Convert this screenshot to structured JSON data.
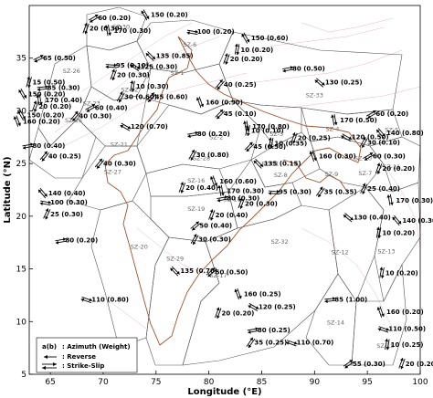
{
  "chart_data": {
    "type": "scatter",
    "title": "",
    "xlabel": "Longitude (°E)",
    "ylabel": "Latitude (°N)",
    "xlim": [
      63,
      100
    ],
    "ylim": [
      5,
      40
    ],
    "xticks": [
      "65",
      "70",
      "75",
      "80",
      "85",
      "90",
      "95",
      "100"
    ],
    "yticks": [
      "5",
      "10",
      "15",
      "20",
      "25",
      "30",
      "35"
    ],
    "grid": false,
    "legend": {
      "placement": "bottom-left",
      "entries": [
        {
          "symbol": "a(b)",
          "label": ": Azimuth (Weight)"
        },
        {
          "symbol": "reverse-arrow",
          "label": ": Reverse"
        },
        {
          "symbol": "strike-slip-arrows",
          "label": ": Strike-Slip"
        }
      ]
    },
    "zone_labels": [
      {
        "name": "SZ-30",
        "x": 71.7,
        "y": 37.8
      },
      {
        "name": "SZ-6",
        "x": 78.2,
        "y": 36.1
      },
      {
        "name": "SZ-26",
        "x": 67.0,
        "y": 33.6
      },
      {
        "name": "SZ-1",
        "x": 77.0,
        "y": 33.4
      },
      {
        "name": "SZ-22",
        "x": 72.5,
        "y": 31.8
      },
      {
        "name": "SZ-23",
        "x": 68.9,
        "y": 30.5
      },
      {
        "name": "SZ-33",
        "x": 90.0,
        "y": 31.3
      },
      {
        "name": "SZ-25",
        "x": 67.2,
        "y": 28.9
      },
      {
        "name": "SZ-4",
        "x": 91.7,
        "y": 28.1
      },
      {
        "name": "SZ-3",
        "x": 86.4,
        "y": 27.6
      },
      {
        "name": "SZ-2",
        "x": 80.7,
        "y": 27.3
      },
      {
        "name": "SZ-5",
        "x": 97.3,
        "y": 28.0
      },
      {
        "name": "SZ-21",
        "x": 71.5,
        "y": 26.6
      },
      {
        "name": "SZ-10",
        "x": 94.6,
        "y": 25.3
      },
      {
        "name": "SZ-28",
        "x": 79.3,
        "y": 25.3
      },
      {
        "name": "SZ-31",
        "x": 85.8,
        "y": 24.8
      },
      {
        "name": "SZ-11",
        "x": 97.3,
        "y": 24.5
      },
      {
        "name": "SZ-8",
        "x": 86.8,
        "y": 23.7
      },
      {
        "name": "SZ-9",
        "x": 91.6,
        "y": 23.8
      },
      {
        "name": "SZ-7",
        "x": 94.8,
        "y": 23.9
      },
      {
        "name": "SZ-27",
        "x": 70.9,
        "y": 24.0
      },
      {
        "name": "SZ-16",
        "x": 78.8,
        "y": 23.2
      },
      {
        "name": "SZ-18",
        "x": 82.2,
        "y": 21.4
      },
      {
        "name": "SZ-19",
        "x": 78.8,
        "y": 20.5
      },
      {
        "name": "SZ-20",
        "x": 73.4,
        "y": 16.9
      },
      {
        "name": "SZ-32",
        "x": 86.7,
        "y": 17.4
      },
      {
        "name": "SZ-29",
        "x": 76.8,
        "y": 15.8
      },
      {
        "name": "SZ-17",
        "x": 80.9,
        "y": 14.2
      },
      {
        "name": "SZ-12",
        "x": 92.4,
        "y": 16.4
      },
      {
        "name": "SZ-13",
        "x": 96.8,
        "y": 16.5
      },
      {
        "name": "SZ-14",
        "x": 92.0,
        "y": 9.7
      },
      {
        "name": "SZ-15",
        "x": 96.7,
        "y": 7.5
      }
    ],
    "vectors": [
      {
        "label": "60 (0.20)",
        "x": 69.5,
        "y": 38.6
      },
      {
        "label": "150 (0.20)",
        "x": 74.5,
        "y": 38.9
      },
      {
        "label": "20 (0.30)",
        "x": 68.7,
        "y": 37.6
      },
      {
        "label": "170 (0.30)",
        "x": 71.0,
        "y": 37.4
      },
      {
        "label": "100 (0.20)",
        "x": 78.9,
        "y": 37.3
      },
      {
        "label": "150 (0.60)",
        "x": 84.0,
        "y": 36.7
      },
      {
        "label": "10 (0.20)",
        "x": 83.0,
        "y": 35.6
      },
      {
        "label": "65 (0.50)",
        "x": 64.3,
        "y": 34.8
      },
      {
        "label": "135 (0.85)",
        "x": 75.0,
        "y": 35.0
      },
      {
        "label": "20 (0.20)",
        "x": 82.0,
        "y": 34.7
      },
      {
        "label": "95 (0.10)",
        "x": 71.2,
        "y": 34.1
      },
      {
        "label": "125 (0.30)",
        "x": 73.5,
        "y": 34.0
      },
      {
        "label": "80 (0.50)",
        "x": 87.9,
        "y": 33.8
      },
      {
        "label": "15 (0.50)",
        "x": 63.3,
        "y": 32.5
      },
      {
        "label": "20 (0.30)",
        "x": 71.3,
        "y": 33.2
      },
      {
        "label": "85 (0.30)",
        "x": 64.7,
        "y": 32.0
      },
      {
        "label": "10 (0.30)",
        "x": 73.1,
        "y": 32.1
      },
      {
        "label": "40 (0.25)",
        "x": 81.4,
        "y": 32.3
      },
      {
        "label": "130 (0.25)",
        "x": 91.0,
        "y": 32.5
      },
      {
        "label": "150 (0.20)",
        "x": 62.9,
        "y": 31.4
      },
      {
        "label": "30 (0.60)",
        "x": 72.0,
        "y": 31.1
      },
      {
        "label": "45 (0.60)",
        "x": 74.9,
        "y": 31.1
      },
      {
        "label": "170 (0.40)",
        "x": 64.5,
        "y": 30.8
      },
      {
        "label": "160 (0.90)",
        "x": 79.7,
        "y": 30.6
      },
      {
        "label": "20 (0.20)",
        "x": 63.9,
        "y": 30.2
      },
      {
        "label": "60 (0.40)",
        "x": 69.2,
        "y": 30.1
      },
      {
        "label": "45 (0.10)",
        "x": 81.4,
        "y": 29.5
      },
      {
        "label": "60 (0.20)",
        "x": 95.8,
        "y": 29.5
      },
      {
        "label": "150 (0.20)",
        "x": 62.8,
        "y": 29.4
      },
      {
        "label": "40 (0.30)",
        "x": 67.7,
        "y": 29.3
      },
      {
        "label": "170 (0.50)",
        "x": 92.4,
        "y": 28.9
      },
      {
        "label": "160 (0.20)",
        "x": 62.4,
        "y": 28.8
      },
      {
        "label": "120 (0.70)",
        "x": 72.6,
        "y": 28.3
      },
      {
        "label": "170 (0.80)",
        "x": 84.1,
        "y": 28.3
      },
      {
        "label": "10 (0.10)",
        "x": 84.0,
        "y": 27.9
      },
      {
        "label": "140 (0.80)",
        "x": 96.8,
        "y": 27.7
      },
      {
        "label": "80 (0.20)",
        "x": 78.9,
        "y": 27.6
      },
      {
        "label": "20 (0.25)",
        "x": 88.4,
        "y": 27.2
      },
      {
        "label": "120 (0.50)",
        "x": 93.5,
        "y": 27.3
      },
      {
        "label": "10 (0.35)",
        "x": 86.2,
        "y": 26.7
      },
      {
        "label": "30 (0.10)",
        "x": 95.0,
        "y": 26.8
      },
      {
        "label": "80 (0.40)",
        "x": 63.3,
        "y": 26.5
      },
      {
        "label": "45 (0.50)",
        "x": 84.2,
        "y": 26.4
      },
      {
        "label": "40 (0.25)",
        "x": 64.8,
        "y": 25.5
      },
      {
        "label": "30 (0.80)",
        "x": 78.8,
        "y": 25.6
      },
      {
        "label": "160 (0.30)",
        "x": 90.4,
        "y": 25.5
      },
      {
        "label": "60 (0.30)",
        "x": 95.5,
        "y": 25.5
      },
      {
        "label": "40 (0.30)",
        "x": 70.0,
        "y": 24.8
      },
      {
        "label": "135 (0.15)",
        "x": 85.2,
        "y": 24.8
      },
      {
        "label": "20 (0.20)",
        "x": 96.4,
        "y": 24.3
      },
      {
        "label": "160 (0.60)",
        "x": 81.0,
        "y": 23.1
      },
      {
        "label": "95 (0.30)",
        "x": 86.6,
        "y": 22.1
      },
      {
        "label": "35 (0.35)",
        "x": 90.9,
        "y": 22.1
      },
      {
        "label": "140 (0.40)",
        "x": 64.8,
        "y": 22.0
      },
      {
        "label": "20 (0.40)",
        "x": 77.8,
        "y": 22.5
      },
      {
        "label": "170 (0.30)",
        "x": 81.7,
        "y": 22.2
      },
      {
        "label": "25 (0.40)",
        "x": 95.0,
        "y": 22.4
      },
      {
        "label": "170 (0.30)",
        "x": 97.7,
        "y": 21.3
      },
      {
        "label": "80 (0.30)",
        "x": 81.7,
        "y": 21.5
      },
      {
        "label": "100 (0.30)",
        "x": 65.0,
        "y": 21.1
      },
      {
        "label": "20 (0.30)",
        "x": 83.4,
        "y": 21.0
      },
      {
        "label": "25 (0.30)",
        "x": 65.0,
        "y": 20.0
      },
      {
        "label": "20 (0.40)",
        "x": 80.6,
        "y": 19.9
      },
      {
        "label": "130 (0.40)",
        "x": 93.7,
        "y": 19.7
      },
      {
        "label": "140 (0.30)",
        "x": 98.3,
        "y": 19.4
      },
      {
        "label": "50 (0.40)",
        "x": 79.1,
        "y": 18.9
      },
      {
        "label": "30 (0.30)",
        "x": 79.0,
        "y": 17.6
      },
      {
        "label": "80 (0.20)",
        "x": 66.4,
        "y": 17.5
      },
      {
        "label": "10 (0.20)",
        "x": 96.4,
        "y": 18.2
      },
      {
        "label": "135 (0.70)",
        "x": 77.3,
        "y": 14.6
      },
      {
        "label": "50 (0.50)",
        "x": 80.6,
        "y": 14.5
      },
      {
        "label": "10 (0.20)",
        "x": 96.7,
        "y": 14.4
      },
      {
        "label": "160 (0.25)",
        "x": 83.3,
        "y": 12.4
      },
      {
        "label": "110 (0.80)",
        "x": 68.9,
        "y": 11.9
      },
      {
        "label": "85 (1.00)",
        "x": 91.9,
        "y": 11.9
      },
      {
        "label": "120 (0.25)",
        "x": 84.7,
        "y": 11.2
      },
      {
        "label": "160 (0.20)",
        "x": 96.8,
        "y": 10.7
      },
      {
        "label": "20 (0.20)",
        "x": 81.2,
        "y": 10.6
      },
      {
        "label": "80 (0.25)",
        "x": 84.6,
        "y": 9.0
      },
      {
        "label": "35 (0.25)",
        "x": 84.3,
        "y": 7.8
      },
      {
        "label": "110 (0.70)",
        "x": 88.3,
        "y": 7.8
      },
      {
        "label": "110 (0.50)",
        "x": 97.0,
        "y": 9.1
      },
      {
        "label": "10 (0.25)",
        "x": 97.2,
        "y": 7.6
      },
      {
        "label": "55 (0.30)",
        "x": 93.6,
        "y": 5.8
      },
      {
        "label": "20 (0.20)",
        "x": 98.6,
        "y": 5.8
      }
    ]
  }
}
